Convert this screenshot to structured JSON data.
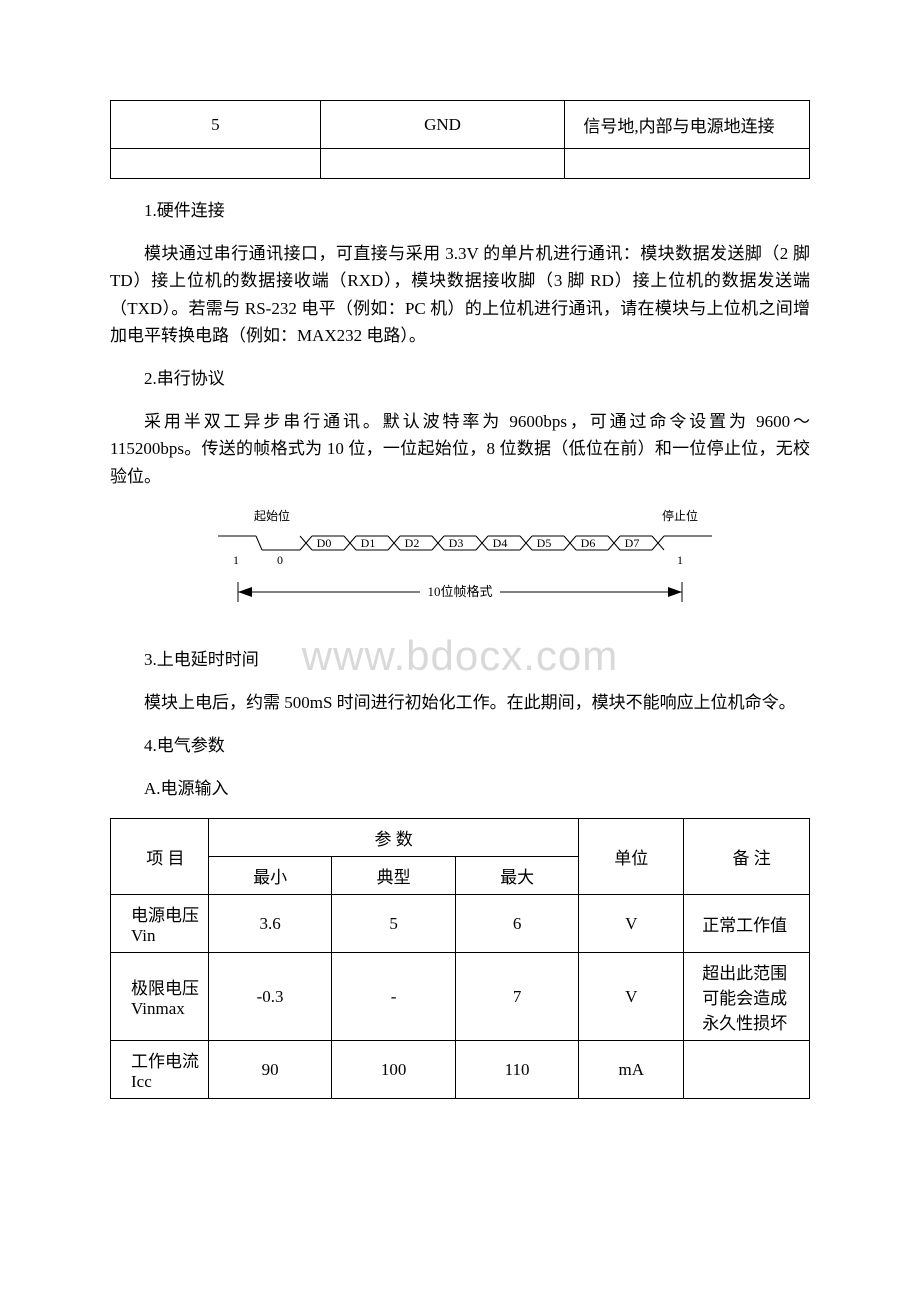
{
  "pin_table": {
    "row": {
      "num": "5",
      "name": "GND",
      "desc": "信号地,内部与电源地连接"
    }
  },
  "sections": {
    "s1": {
      "title": "1.硬件连接",
      "body": "模块通过串行通讯接口，可直接与采用 3.3V 的单片机进行通讯：模块数据发送脚（2 脚 TD）接上位机的数据接收端（RXD），模块数据接收脚（3 脚 RD）接上位机的数据发送端（TXD）。若需与 RS-232 电平（例如：PC 机）的上位机进行通讯，请在模块与上位机之间增加电平转换电路（例如：MAX232 电路）。"
    },
    "s2": {
      "title": "2.串行协议",
      "body": "采用半双工异步串行通讯。默认波特率为 9600bps，可通过命令设置为 9600～115200bps。传送的帧格式为 10 位，一位起始位，8 位数据（低位在前）和一位停止位，无校验位。"
    },
    "s3": {
      "title": "3.上电延时时间",
      "body": "模块上电后，约需 500mS 时间进行初始化工作。在此期间，模块不能响应上位机命令。"
    },
    "s4": {
      "title": "4.电气参数"
    },
    "s4a": {
      "title": "A.电源输入"
    }
  },
  "diagram": {
    "start_label": "起始位",
    "stop_label": "停止位",
    "idle_left": "1",
    "start_bit": "0",
    "bits": [
      "D0",
      "D1",
      "D2",
      "D3",
      "D4",
      "D5",
      "D6",
      "D7"
    ],
    "stop_bit": "1",
    "caption": "10位帧格式",
    "colors": {
      "line": "#000000",
      "text": "#000000",
      "bg": "#ffffff"
    },
    "font_size": 12
  },
  "watermark": "www.bdocx.com",
  "elec_table": {
    "headers": {
      "item": "项 目",
      "param": "参 数",
      "min": "最小",
      "typ": "典型",
      "max": "最大",
      "unit": "单位",
      "note": "备 注"
    },
    "rows": [
      {
        "item": "电源电压 Vin",
        "min": "3.6",
        "typ": "5",
        "max": "6",
        "unit": "V",
        "note": "正常工作值"
      },
      {
        "item": "极限电压Vinmax",
        "min": "-0.3",
        "typ": "-",
        "max": "7",
        "unit": "V",
        "note": "超出此范围可能会造成永久性损坏"
      },
      {
        "item": "工作电流 Icc",
        "min": "90",
        "typ": "100",
        "max": "110",
        "unit": "mA",
        "note": ""
      }
    ]
  }
}
